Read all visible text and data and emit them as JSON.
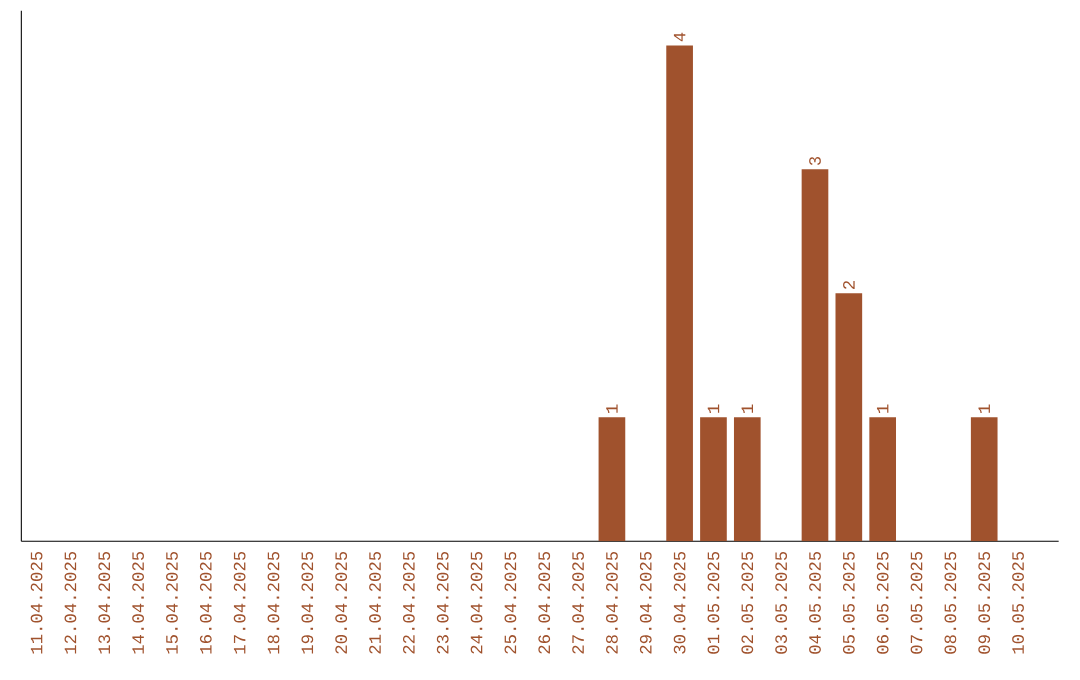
{
  "chart_data": {
    "type": "bar",
    "categories": [
      "11.04.2025",
      "12.04.2025",
      "13.04.2025",
      "14.04.2025",
      "15.04.2025",
      "16.04.2025",
      "17.04.2025",
      "18.04.2025",
      "19.04.2025",
      "20.04.2025",
      "21.04.2025",
      "22.04.2025",
      "23.04.2025",
      "24.04.2025",
      "25.04.2025",
      "26.04.2025",
      "27.04.2025",
      "28.04.2025",
      "29.04.2025",
      "30.04.2025",
      "01.05.2025",
      "02.05.2025",
      "03.05.2025",
      "04.05.2025",
      "05.05.2025",
      "06.05.2025",
      "07.05.2025",
      "08.05.2025",
      "09.05.2025",
      "10.05.2025"
    ],
    "values": [
      null,
      null,
      null,
      null,
      null,
      null,
      null,
      null,
      null,
      null,
      null,
      null,
      null,
      null,
      null,
      null,
      null,
      1,
      null,
      4,
      1,
      1,
      null,
      3,
      2,
      1,
      null,
      null,
      1,
      null
    ],
    "data_labels": true,
    "color": "#a0522d",
    "tick_labels": "x"
  }
}
